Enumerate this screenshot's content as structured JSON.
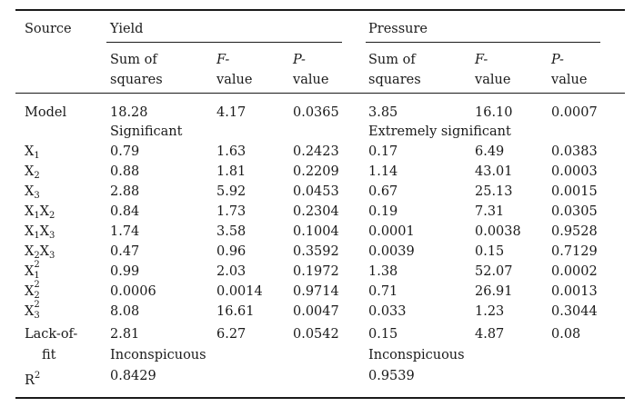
{
  "table": {
    "col_source": "Source",
    "group_yield": "Yield",
    "group_pressure": "Pressure",
    "sub_headers": {
      "sum_l1": "Sum of",
      "sum_l2": "squares",
      "f_l1": "F-",
      "f_l2": "value",
      "p_l1": "P-",
      "p_l2": "value"
    },
    "rows": [
      {
        "src": "Model",
        "yss": "18.28",
        "yf": "4.17",
        "yp": "0.0365",
        "pss": "3.85",
        "pf": "16.10",
        "pp": "0.0007"
      },
      {
        "src": "X",
        "src_sub": "1",
        "yss": "0.79",
        "yf": "1.63",
        "yp": "0.2423",
        "pss": "0.17",
        "pf": "6.49",
        "pp": "0.0383"
      },
      {
        "src": "X",
        "src_sub": "2",
        "yss": "0.88",
        "yf": "1.81",
        "yp": "0.2209",
        "pss": "1.14",
        "pf": "43.01",
        "pp": "0.0003"
      },
      {
        "src": "X",
        "src_sub": "3",
        "yss": "2.88",
        "yf": "5.92",
        "yp": "0.0453",
        "pss": "0.67",
        "pf": "25.13",
        "pp": "0.0015"
      },
      {
        "src": "X",
        "src_sub": "1",
        "src2": "X",
        "src2_sub": "2",
        "yss": "0.84",
        "yf": "1.73",
        "yp": "0.2304",
        "pss": "0.19",
        "pf": "7.31",
        "pp": "0.0305"
      },
      {
        "src": "X",
        "src_sub": "1",
        "src2": "X",
        "src2_sub": "3",
        "yss": "1.74",
        "yf": "3.58",
        "yp": "0.1004",
        "pss": "0.0001",
        "pf": "0.0038",
        "pp": "0.9528"
      },
      {
        "src": "X",
        "src_sub": "2",
        "src2": "X",
        "src2_sub": "3",
        "yss": "0.47",
        "yf": "0.96",
        "yp": "0.3592",
        "pss": "0.0039",
        "pf": "0.15",
        "pp": "0.7129"
      },
      {
        "src": "X",
        "src_sub": "1",
        "src_sup": "2",
        "yss": "0.99",
        "yf": "2.03",
        "yp": "0.1972",
        "pss": "1.38",
        "pf": "52.07",
        "pp": "0.0002"
      },
      {
        "src": "X",
        "src_sub": "2",
        "src_sup": "2",
        "yss": "0.0006",
        "yf": "0.0014",
        "yp": "0.9714",
        "pss": "0.71",
        "pf": "26.91",
        "pp": "0.0013"
      },
      {
        "src": "X",
        "src_sub": "3",
        "src_sup": "2",
        "yss": "8.08",
        "yf": "16.61",
        "yp": "0.0047",
        "pss": "0.033",
        "pf": "1.23",
        "pp": "0.3044"
      },
      {
        "src": "Lack-of-",
        "src_l2": "fit",
        "yss": "2.81",
        "yf": "6.27",
        "yp": "0.0542",
        "pss": "0.15",
        "pf": "4.87",
        "pp": "0.08"
      },
      {
        "src": "R",
        "src_sup": "2",
        "yss": "0.8429",
        "pss": "0.9539"
      }
    ],
    "notes": {
      "model_yield": "Significant",
      "model_pressure": "Extremely significant",
      "lof_yield": "Inconspicuous",
      "lof_pressure": "Inconspicuous"
    }
  }
}
